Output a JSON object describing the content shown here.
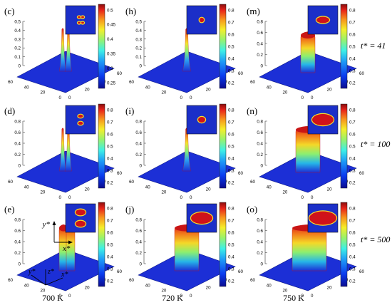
{
  "colors": {
    "floor": "#1c2fd6",
    "floor_edge": "#0d1a8a",
    "axis": "#333333",
    "colormap": [
      "#0b0b8f",
      "#0a3cf0",
      "#1e9cf7",
      "#3ef0e6",
      "#9af26a",
      "#f5ee2a",
      "#f7941d",
      "#e8231a",
      "#8a0d0d"
    ]
  },
  "chart_data": [
    {
      "type": "surface3d",
      "label": "(c)",
      "temperature": "700 K",
      "time": "t* = 41",
      "zlim": [
        0,
        0.5
      ],
      "zticks": [
        "0",
        "0.1",
        "0.2",
        "0.3",
        "0.4",
        "0.5"
      ],
      "cbar": [
        "0.5",
        "0.45",
        "0.4",
        "0.35",
        "0.3",
        "0.25"
      ],
      "peak": 0.55,
      "shape": "twin-narrow",
      "inset": "two-dots"
    },
    {
      "type": "surface3d",
      "label": "(h)",
      "temperature": "720 K",
      "time": "t* = 41",
      "zlim": [
        0,
        0.5
      ],
      "zticks": [
        "0",
        "0.1",
        "0.2",
        "0.3",
        "0.4",
        "0.5"
      ],
      "cbar": [
        "0.8",
        "0.7",
        "0.6",
        "0.5",
        "0.4",
        "0.3",
        "0.2"
      ],
      "peak": 0.58,
      "shape": "single-narrow",
      "inset": "small-circle"
    },
    {
      "type": "surface3d",
      "label": "(m)",
      "temperature": "750 K",
      "time": "t* = 41",
      "zlim": [
        0,
        0.8
      ],
      "zticks": [
        "0",
        "0.2",
        "0.4",
        "0.6",
        "0.8"
      ],
      "cbar": [
        "0.8",
        "0.7",
        "0.6",
        "0.5",
        "0.4",
        "0.3",
        "0.2"
      ],
      "peak": 0.7,
      "shape": "plateau-small",
      "inset": "ellipse-medium"
    },
    {
      "type": "surface3d",
      "label": "(d)",
      "temperature": "700 K",
      "time": "t* = 100",
      "zlim": [
        0,
        0.8
      ],
      "zticks": [
        "0",
        "0.2",
        "0.4",
        "0.6",
        "0.8"
      ],
      "cbar": [
        "0.8",
        "0.7",
        "0.6",
        "0.5",
        "0.4",
        "0.3",
        "0.2"
      ],
      "peak": 0.8,
      "shape": "twin-narrow",
      "inset": "two-ellipses-small"
    },
    {
      "type": "surface3d",
      "label": "(i)",
      "temperature": "720 K",
      "time": "t* = 100",
      "zlim": [
        0,
        0.8
      ],
      "zticks": [
        "0",
        "0.2",
        "0.4",
        "0.6",
        "0.8"
      ],
      "cbar": [
        "0.8",
        "0.7",
        "0.6",
        "0.5",
        "0.4",
        "0.3",
        "0.2"
      ],
      "peak": 0.8,
      "shape": "single-narrow",
      "inset": "circle-medium"
    },
    {
      "type": "surface3d",
      "label": "(n)",
      "temperature": "750 K",
      "time": "t* = 100",
      "zlim": [
        0,
        0.8
      ],
      "zticks": [
        "0",
        "0.2",
        "0.4",
        "0.6",
        "0.8"
      ],
      "cbar": [
        "0.8",
        "0.7",
        "0.6",
        "0.5",
        "0.4",
        "0.3",
        "0.2"
      ],
      "peak": 0.8,
      "shape": "plateau-medium",
      "inset": "ellipse-large"
    },
    {
      "type": "surface3d",
      "label": "(e)",
      "temperature": "700 K",
      "time": "t* = 500",
      "zlim": [
        0,
        0.8
      ],
      "zticks": [
        "0",
        "0.2",
        "0.4",
        "0.6",
        "0.8"
      ],
      "cbar": [
        "0.8",
        "0.7",
        "0.6",
        "0.5",
        "0.4",
        "0.3",
        "0.2"
      ],
      "peak": 0.8,
      "shape": "twin-plateau",
      "inset": "two-ellipses"
    },
    {
      "type": "surface3d",
      "label": "(j)",
      "temperature": "720 K",
      "time": "t* = 500",
      "zlim": [
        0,
        0.8
      ],
      "zticks": [
        "0",
        "0.2",
        "0.4",
        "0.6",
        "0.8"
      ],
      "cbar": [
        "0.8",
        "0.7",
        "0.6",
        "0.5",
        "0.4",
        "0.3",
        "0.2"
      ],
      "peak": 0.8,
      "shape": "plateau-medium",
      "inset": "ellipse-large"
    },
    {
      "type": "surface3d",
      "label": "(o)",
      "temperature": "750 K",
      "time": "t* = 500",
      "zlim": [
        0,
        0.8
      ],
      "zticks": [
        "0",
        "0.2",
        "0.4",
        "0.6",
        "0.8"
      ],
      "cbar": [
        "0.8",
        "0.7",
        "0.6",
        "0.5",
        "0.4",
        "0.3",
        "0.2"
      ],
      "peak": 0.8,
      "shape": "plateau-large",
      "inset": "ellipse-xlarge"
    }
  ],
  "xy_ticks": [
    "0",
    "20",
    "40",
    "60"
  ],
  "y_ticks": [
    "0",
    "20",
    "40",
    "60"
  ],
  "row_labels": [
    "t* = 41",
    "t* = 100",
    "t* = 500"
  ],
  "column_labels": [
    "700 K",
    "720 K",
    "750 K"
  ],
  "inset_axes": {
    "y": "y*",
    "x": "x*"
  },
  "floor_axes": {
    "y": "y*",
    "z": "z*",
    "x": "x*"
  }
}
